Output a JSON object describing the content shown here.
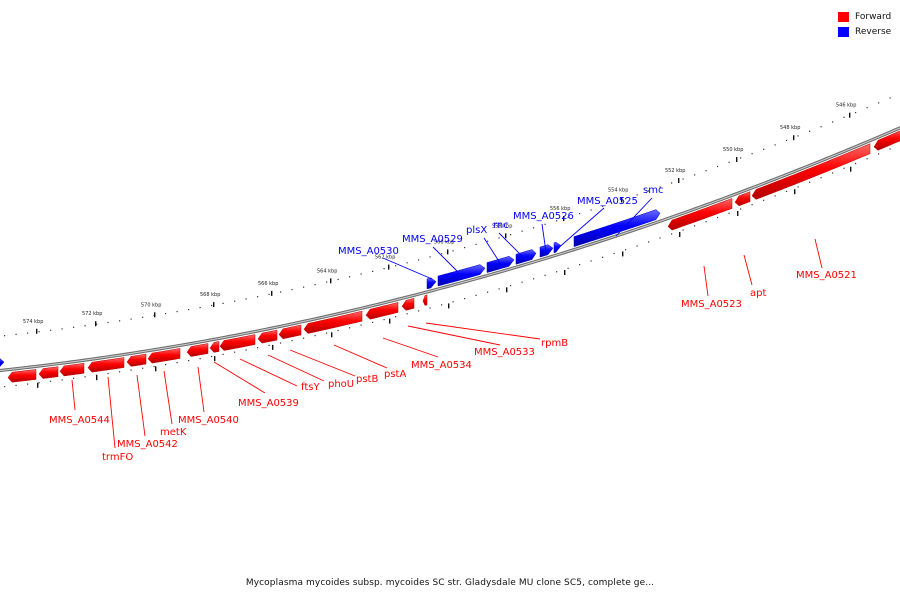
{
  "legend": [
    {
      "label": "Forward",
      "color": "#ff0000"
    },
    {
      "label": "Reverse",
      "color": "#0000ff"
    }
  ],
  "caption": "Mycoplasma mycoides subsp. mycoides SC str. Gladysdale MU clone SC5, complete ge...",
  "tick_labels": [
    "574 kbp",
    "572 kbp",
    "570 kbp",
    "568 kbp",
    "566 kbp",
    "564 kbp",
    "562 kbp",
    "560 kbp",
    "558 kbp",
    "556 kbp",
    "554 kbp",
    "552 kbp",
    "550 kbp",
    "548 kbp",
    "546 kbp"
  ],
  "forward_labels": [
    "MMS_A0544",
    "trmFO",
    "MMS_A0542",
    "metK",
    "MMS_A0540",
    "MMS_A0539",
    "ftsY",
    "phoU",
    "pstB",
    "pstA",
    "MMS_A0534",
    "MMS_A0533",
    "rpmB",
    "MMS_A0523",
    "apt",
    "MMS_A0521"
  ],
  "reverse_labels": [
    "MMS_A0530",
    "MMS_A0529",
    "plsX",
    "rnc",
    "MMS_A0526",
    "MMS_A0525",
    "smc"
  ],
  "colors": {
    "forward": "#ff0000",
    "reverse": "#0000ff",
    "backbone": "#808080"
  }
}
